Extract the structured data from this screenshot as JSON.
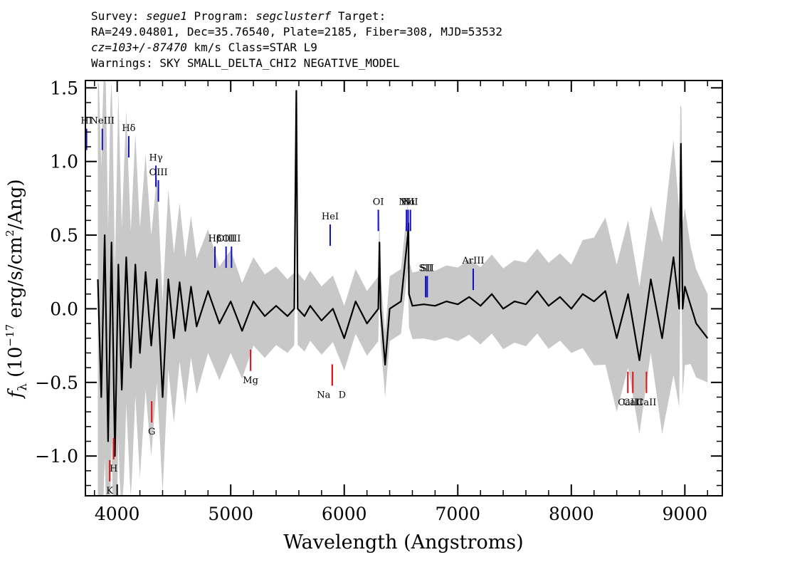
{
  "header": {
    "survey_label": "Survey:",
    "survey": "segue1",
    "program_label": "Program:",
    "program": "segclusterf",
    "target_label": "Target:",
    "line2": "RA=249.04801, Dec=35.76540, Plate=2185, Fiber=308, MJD=53532",
    "cz_value": "cz=103+/-87470",
    "cz_unit": "km/s",
    "class_text": "Class=STAR L9",
    "warnings": "Warnings: SKY SMALL_DELTA_CHI2 NEGATIVE_MODEL"
  },
  "colors": {
    "flux": "#000000",
    "error_band": "#c8c8c8",
    "emission": "#1010c0",
    "absorption": "#e01010"
  },
  "chart_data": {
    "type": "line",
    "title": "",
    "xlabel": "Wavelength (Angstroms)",
    "ylabel": "f_λ (10^-17 erg/s/cm²/Ang)",
    "xlim": [
      3720,
      9330
    ],
    "ylim": [
      -1.27,
      1.55
    ],
    "xticks": [
      4000,
      5000,
      6000,
      7000,
      8000,
      9000
    ],
    "xtick_labels": [
      "4000",
      "5000",
      "6000",
      "7000",
      "8000",
      "9000"
    ],
    "yticks": [
      -1.0,
      -0.5,
      0.0,
      0.5,
      1.0,
      1.5
    ],
    "ytick_labels": [
      "−1.0",
      "−0.5",
      "0.0",
      "0.5",
      "1.0",
      "1.5"
    ],
    "grid": false,
    "series": [
      {
        "role": "flux",
        "x": [
          3830,
          3860,
          3890,
          3920,
          3950,
          3980,
          4010,
          4040,
          4080,
          4120,
          4160,
          4200,
          4250,
          4300,
          4350,
          4400,
          4450,
          4500,
          4550,
          4600,
          4650,
          4700,
          4800,
          4900,
          5000,
          5100,
          5200,
          5300,
          5400,
          5500,
          5560,
          5578,
          5590,
          5650,
          5700,
          5800,
          5900,
          6000,
          6100,
          6200,
          6300,
          6310,
          6320,
          6360,
          6400,
          6500,
          6560,
          6565,
          6570,
          6600,
          6700,
          6800,
          6900,
          7000,
          7100,
          7200,
          7300,
          7400,
          7500,
          7600,
          7700,
          7800,
          7900,
          8000,
          8100,
          8200,
          8300,
          8400,
          8500,
          8600,
          8700,
          8800,
          8900,
          8950,
          8965,
          8980,
          9000,
          9100,
          9200
        ],
        "y": [
          0.2,
          -0.6,
          0.5,
          -0.9,
          0.45,
          -1.0,
          0.3,
          -0.55,
          0.35,
          -0.4,
          0.3,
          -0.3,
          0.25,
          -0.25,
          0.2,
          -0.6,
          0.2,
          -0.2,
          0.18,
          -0.15,
          0.15,
          -0.12,
          0.12,
          -0.1,
          0.05,
          -0.15,
          0.05,
          -0.05,
          0.02,
          -0.05,
          0.0,
          1.48,
          0.0,
          -0.05,
          0.02,
          -0.08,
          0.0,
          -0.2,
          0.05,
          -0.1,
          0.0,
          0.45,
          0.0,
          -0.38,
          0.0,
          0.05,
          0.5,
          0.58,
          0.1,
          0.02,
          0.03,
          0.02,
          0.05,
          0.03,
          0.08,
          0.02,
          0.1,
          0.0,
          0.05,
          0.03,
          0.12,
          0.02,
          0.08,
          0.0,
          0.1,
          0.05,
          0.12,
          -0.2,
          0.1,
          -0.35,
          0.2,
          -0.2,
          0.35,
          0.0,
          1.12,
          0.0,
          0.15,
          -0.1,
          -0.2
        ]
      },
      {
        "role": "error",
        "x": [
          3830,
          3900,
          4000,
          4100,
          4200,
          4300,
          4400,
          4600,
          4800,
          5000,
          5200,
          5500,
          6000,
          6500,
          7000,
          7500,
          8000,
          8300,
          8500,
          8700,
          8900,
          9050,
          9200
        ],
        "err": [
          1.6,
          1.5,
          1.2,
          0.95,
          0.85,
          0.75,
          0.65,
          0.5,
          0.42,
          0.35,
          0.3,
          0.25,
          0.22,
          0.22,
          0.25,
          0.28,
          0.3,
          0.5,
          0.5,
          0.5,
          0.8,
          0.4,
          0.3
        ]
      }
    ],
    "emission_lines": [
      {
        "label": "HI",
        "wave": 3730,
        "y": 1.15
      },
      {
        "label": "NeIII",
        "wave": 3869,
        "y": 1.15
      },
      {
        "label": "Hδ",
        "wave": 4102,
        "y": 1.1
      },
      {
        "label": "Hγ",
        "wave": 4341,
        "y": 0.9
      },
      {
        "label": "OIII",
        "wave": 4363,
        "y": 0.8
      },
      {
        "label": "Hβ",
        "wave": 4861,
        "y": 0.35
      },
      {
        "label": "OIII",
        "wave": 4959,
        "y": 0.35
      },
      {
        "label": "OIII",
        "wave": 5007,
        "y": 0.35
      },
      {
        "label": "HeI",
        "wave": 5876,
        "y": 0.5
      },
      {
        "label": "OI",
        "wave": 6300,
        "y": 0.6
      },
      {
        "label": "NII",
        "wave": 6548,
        "y": 0.6
      },
      {
        "label": "Hα",
        "wave": 6563,
        "y": 0.6
      },
      {
        "label": "NII",
        "wave": 6583,
        "y": 0.6
      },
      {
        "label": "SII",
        "wave": 6717,
        "y": 0.15
      },
      {
        "label": "SII",
        "wave": 6731,
        "y": 0.15
      },
      {
        "label": "ArIII",
        "wave": 7136,
        "y": 0.2
      }
    ],
    "absorption_lines": [
      {
        "label": "K",
        "wave": 3934,
        "y": -1.1
      },
      {
        "label": "H",
        "wave": 3969,
        "y": -0.95
      },
      {
        "label": "G",
        "wave": 4304,
        "y": -0.7
      },
      {
        "label": "Mg",
        "wave": 5175,
        "y": -0.35
      },
      {
        "label": "Na",
        "wave": 5894,
        "y": -0.45
      },
      {
        "label": "D",
        "wave": 5894,
        "y": -0.45
      },
      {
        "label": "CaII",
        "wave": 8498,
        "y": -0.5
      },
      {
        "label": "CaII",
        "wave": 8542,
        "y": -0.5
      },
      {
        "label": "CaII",
        "wave": 8662,
        "y": -0.5
      }
    ]
  }
}
